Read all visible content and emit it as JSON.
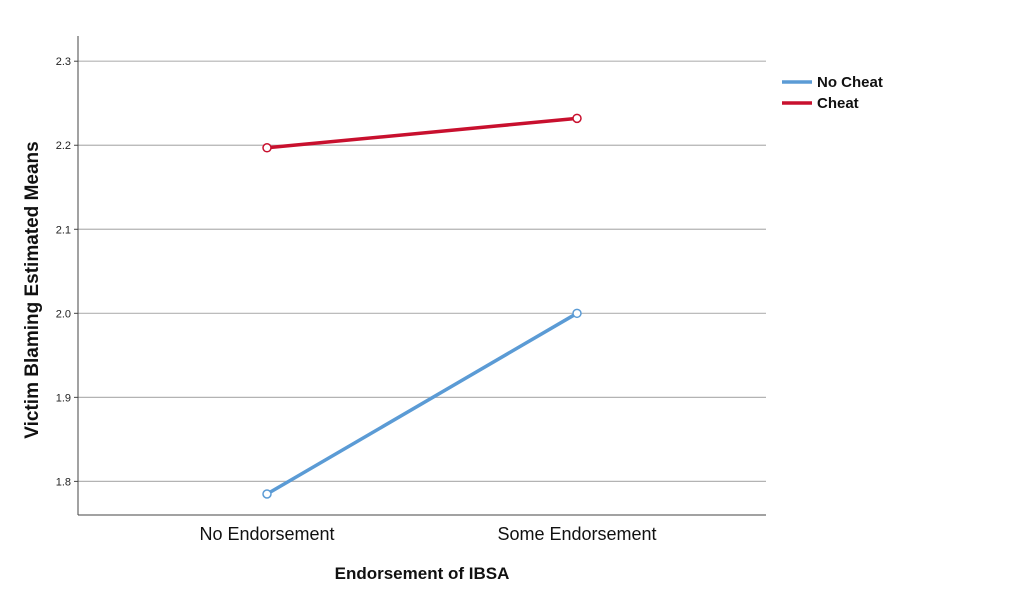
{
  "chart_data": {
    "type": "line",
    "xlabel": "Endorsement of IBSA",
    "ylabel": "Victim Blaming Estimated Means",
    "categories": [
      "No Endorsement",
      "Some Endorsement"
    ],
    "ylim": [
      1.76,
      2.33
    ],
    "yticks": [
      "1.8",
      "1.9",
      "2.0",
      "2.1",
      "2.2",
      "2.3"
    ],
    "grid": true,
    "legend_position": "right",
    "series": [
      {
        "name": "No Cheat",
        "values": [
          1.785,
          2.0
        ],
        "color": "#5b9bd5"
      },
      {
        "name": "Cheat",
        "values": [
          2.197,
          2.232
        ],
        "color": "#c8102e"
      }
    ]
  }
}
